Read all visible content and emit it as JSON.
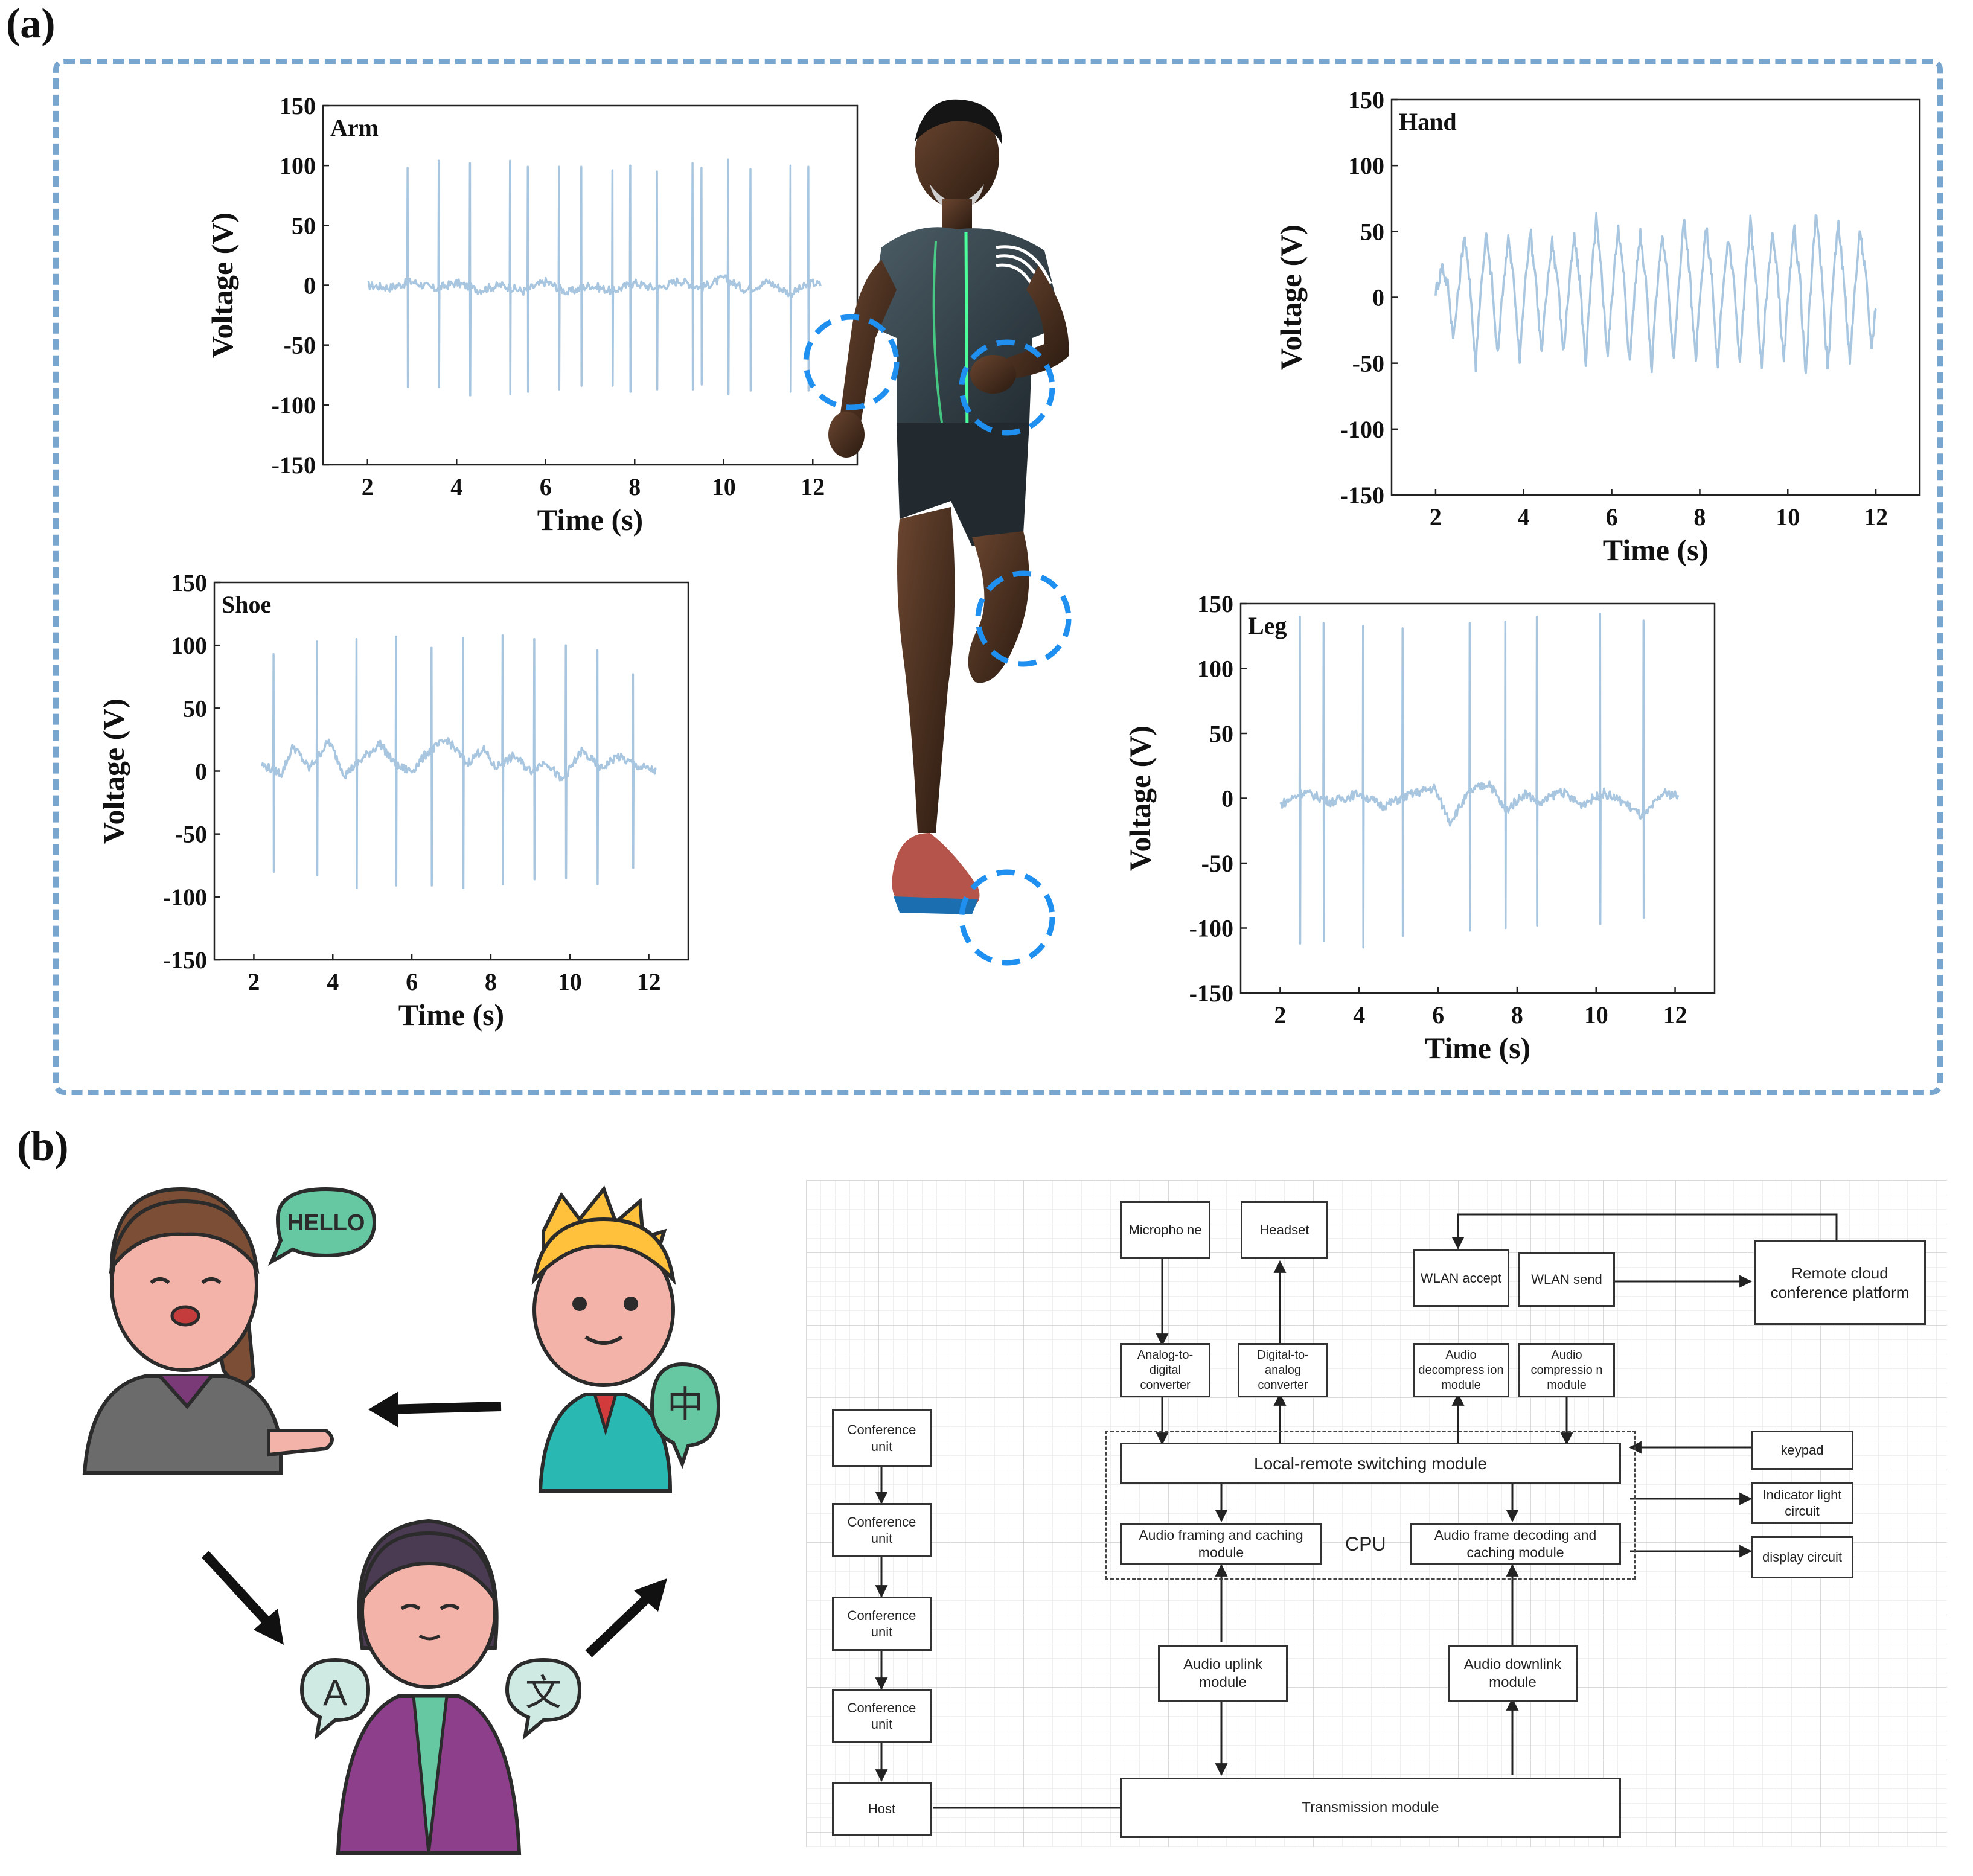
{
  "panels": {
    "a": "(a)",
    "b": "(b)"
  },
  "colors": {
    "signal": "#a8c6df",
    "frame": "#78a6cf",
    "marker": "#1f8ff0"
  },
  "chart_data": [
    {
      "type": "line",
      "title": "Arm",
      "xlabel": "Time (s)",
      "ylabel": "Voltage (V)",
      "xlim": [
        1,
        13
      ],
      "ylim": [
        -150,
        150
      ],
      "xticks": [
        2,
        4,
        6,
        8,
        10,
        12
      ],
      "yticks": [
        150,
        100,
        50,
        0,
        -50,
        -100,
        -150
      ],
      "x_range": [
        2.0,
        12.2
      ],
      "spikes": [
        [
          2.9,
          98,
          -85
        ],
        [
          3.6,
          104,
          -85
        ],
        [
          4.3,
          102,
          -92
        ],
        [
          5.2,
          104,
          -91
        ],
        [
          5.6,
          99,
          -89
        ],
        [
          6.3,
          99,
          -87
        ],
        [
          6.8,
          99,
          -84
        ],
        [
          7.5,
          96,
          -84
        ],
        [
          7.9,
          100,
          -89
        ],
        [
          8.5,
          95,
          -87
        ],
        [
          9.3,
          102,
          -87
        ],
        [
          9.5,
          98,
          -83
        ],
        [
          10.1,
          105,
          -91
        ],
        [
          10.6,
          97,
          -88
        ],
        [
          11.5,
          100,
          -89
        ],
        [
          11.9,
          99,
          -88
        ]
      ],
      "baseline": [
        [
          2.0,
          0
        ],
        [
          2.5,
          -2
        ],
        [
          3.0,
          3
        ],
        [
          3.5,
          -3
        ],
        [
          4.0,
          2
        ],
        [
          4.5,
          -4
        ],
        [
          5.0,
          0
        ],
        [
          5.5,
          -5
        ],
        [
          6.0,
          3
        ],
        [
          6.5,
          -6
        ],
        [
          7.0,
          0
        ],
        [
          7.5,
          -5
        ],
        [
          8.0,
          2
        ],
        [
          8.5,
          -3
        ],
        [
          9.0,
          4
        ],
        [
          9.5,
          -2
        ],
        [
          10.0,
          6
        ],
        [
          10.5,
          -4
        ],
        [
          11.0,
          3
        ],
        [
          11.5,
          -7
        ],
        [
          12.0,
          2
        ],
        [
          12.2,
          0
        ]
      ]
    },
    {
      "type": "line",
      "title": "Hand",
      "xlabel": "Time (s)",
      "ylabel": "Voltage (V)",
      "xlim": [
        1,
        13
      ],
      "ylim": [
        -150,
        150
      ],
      "xticks": [
        2,
        4,
        6,
        8,
        10,
        12
      ],
      "yticks": [
        150,
        100,
        50,
        0,
        -50,
        -100,
        -150
      ],
      "x_range": [
        2.0,
        12.0
      ],
      "cycles": 20,
      "peaks": [
        25,
        48,
        48,
        46,
        52,
        44,
        46,
        60,
        56,
        50,
        48,
        62,
        54,
        46,
        58,
        50,
        52,
        66,
        58,
        52
      ],
      "troughs": [
        -30,
        -52,
        -45,
        -48,
        -44,
        -42,
        -50,
        -44,
        -50,
        -54,
        -46,
        -48,
        -56,
        -52,
        -54,
        -50,
        -62,
        -56,
        -50,
        -40
      ]
    },
    {
      "type": "line",
      "title": "Shoe",
      "xlabel": "Time (s)",
      "ylabel": "Voltage (V)",
      "xlim": [
        1,
        13
      ],
      "ylim": [
        -150,
        150
      ],
      "xticks": [
        2,
        4,
        6,
        8,
        10,
        12
      ],
      "yticks": [
        150,
        100,
        50,
        0,
        -50,
        -100,
        -150
      ],
      "x_range": [
        2.2,
        12.2
      ],
      "spikes": [
        [
          2.5,
          93,
          -80
        ],
        [
          3.6,
          103,
          -83
        ],
        [
          4.6,
          105,
          -93
        ],
        [
          5.6,
          107,
          -91
        ],
        [
          6.5,
          98,
          -91
        ],
        [
          7.3,
          106,
          -93
        ],
        [
          8.3,
          108,
          -90
        ],
        [
          9.1,
          105,
          -86
        ],
        [
          9.9,
          100,
          -85
        ],
        [
          10.7,
          96,
          -90
        ],
        [
          11.6,
          77,
          -77
        ]
      ],
      "baseline": [
        [
          2.2,
          5
        ],
        [
          2.7,
          -2
        ],
        [
          3.0,
          20
        ],
        [
          3.4,
          2
        ],
        [
          3.9,
          24
        ],
        [
          4.3,
          -3
        ],
        [
          4.9,
          14
        ],
        [
          5.2,
          22
        ],
        [
          5.6,
          4
        ],
        [
          6.0,
          0
        ],
        [
          6.4,
          15
        ],
        [
          6.9,
          25
        ],
        [
          7.4,
          6
        ],
        [
          7.8,
          18
        ],
        [
          8.1,
          3
        ],
        [
          8.6,
          12
        ],
        [
          9.0,
          0
        ],
        [
          9.4,
          8
        ],
        [
          9.8,
          -8
        ],
        [
          10.3,
          16
        ],
        [
          10.8,
          2
        ],
        [
          11.2,
          12
        ],
        [
          11.7,
          4
        ],
        [
          12.2,
          0
        ]
      ]
    },
    {
      "type": "line",
      "title": "Leg",
      "xlabel": "Time (s)",
      "ylabel": "Voltage (V)",
      "xlim": [
        1,
        13
      ],
      "ylim": [
        -150,
        150
      ],
      "xticks": [
        2,
        4,
        6,
        8,
        10,
        12
      ],
      "yticks": [
        150,
        100,
        50,
        0,
        -50,
        -100,
        -150
      ],
      "x_range": [
        2.0,
        12.1
      ],
      "spikes": [
        [
          2.5,
          140,
          -112
        ],
        [
          3.1,
          135,
          -110
        ],
        [
          4.1,
          133,
          -115
        ],
        [
          5.1,
          131,
          -106
        ],
        [
          6.8,
          135,
          -102
        ],
        [
          7.7,
          136,
          -100
        ],
        [
          8.5,
          140,
          -98
        ],
        [
          10.1,
          142,
          -97
        ],
        [
          11.2,
          137,
          -92
        ]
      ],
      "baseline": [
        [
          2.0,
          -5
        ],
        [
          2.6,
          5
        ],
        [
          3.3,
          -3
        ],
        [
          4.0,
          4
        ],
        [
          4.6,
          -6
        ],
        [
          5.3,
          3
        ],
        [
          5.9,
          8
        ],
        [
          6.3,
          -18
        ],
        [
          6.8,
          5
        ],
        [
          7.3,
          12
        ],
        [
          7.7,
          -10
        ],
        [
          8.2,
          4
        ],
        [
          8.6,
          -4
        ],
        [
          9.1,
          6
        ],
        [
          9.6,
          -5
        ],
        [
          10.2,
          4
        ],
        [
          10.7,
          -3
        ],
        [
          11.2,
          -15
        ],
        [
          11.7,
          4
        ],
        [
          12.1,
          2
        ]
      ]
    }
  ],
  "diagram": {
    "cpu_label": "CPU",
    "boxes": {
      "microphone": "Micropho ne",
      "headset": "Headset",
      "wlan_accept": "WLAN accept",
      "wlan_send": "WLAN send",
      "remote_cloud": "Remote cloud conference platform",
      "adc": "Analog-to-digital converter",
      "dac": "Digital-to-analog converter",
      "audio_decompress": "Audio decompress ion module",
      "audio_compress": "Audio compressio n module",
      "conf1": "Conference unit",
      "conf2": "Conference unit",
      "conf3": "Conference unit",
      "conf4": "Conference unit",
      "host": "Host",
      "local_remote": "Local-remote switching module",
      "keypad": "keypad",
      "indicator": "Indicator light circuit",
      "display": "display circuit",
      "framing": "Audio framing and caching module",
      "decoding": "Audio frame decoding and caching module",
      "uplink": "Audio uplink module",
      "downlink": "Audio downlink module",
      "transmission": "Transmission module"
    }
  },
  "illustration": {
    "bubble_hello": "HELLO",
    "bubble_zhong": "中",
    "bubble_a": "A",
    "bubble_wen": "文"
  }
}
